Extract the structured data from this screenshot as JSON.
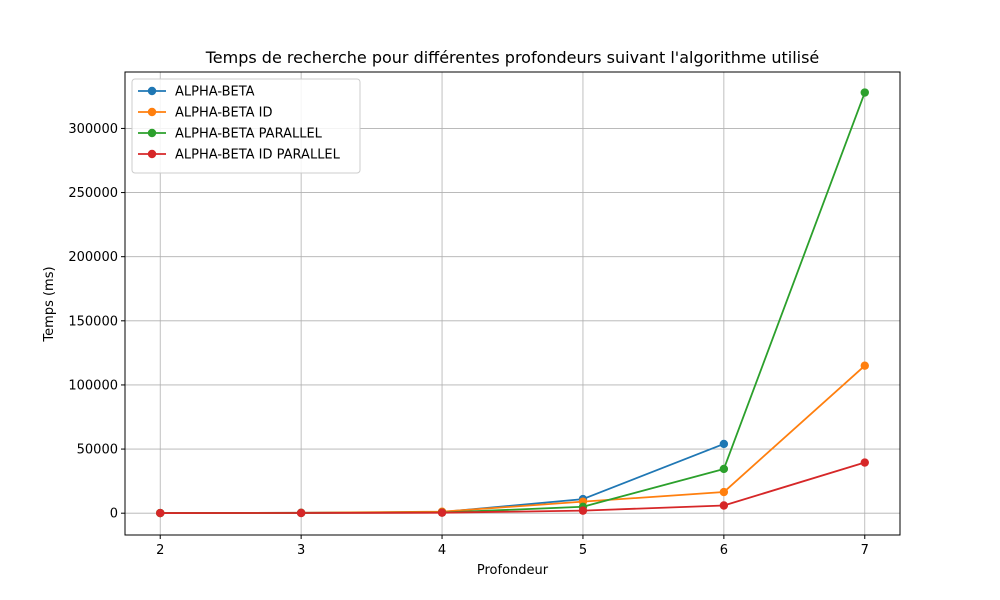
{
  "chart_data": {
    "type": "line",
    "title": "Temps de recherche pour différentes profondeurs suivant l'algorithme utilisé",
    "xlabel": "Profondeur",
    "ylabel": "Temps (ms)",
    "xlim": [
      1.75,
      7.25
    ],
    "ylim": [
      -17000,
      344000
    ],
    "xticks": [
      2,
      3,
      4,
      5,
      6,
      7
    ],
    "xtick_labels": [
      "2",
      "3",
      "4",
      "5",
      "6",
      "7"
    ],
    "yticks": [
      0,
      50000,
      100000,
      150000,
      200000,
      250000,
      300000
    ],
    "ytick_labels": [
      "0",
      "50000",
      "100000",
      "150000",
      "200000",
      "250000",
      "300000"
    ],
    "grid": true,
    "legend_position": "top-left",
    "series": [
      {
        "name": "ALPHA-BETA",
        "color": "#1f77b4",
        "x": [
          2,
          3,
          4,
          5,
          6
        ],
        "y": [
          100,
          300,
          900,
          11000,
          54000
        ]
      },
      {
        "name": "ALPHA-BETA ID",
        "color": "#ff7f0e",
        "x": [
          2,
          3,
          4,
          5,
          6,
          7
        ],
        "y": [
          100,
          300,
          1200,
          9000,
          16500,
          115000
        ]
      },
      {
        "name": "ALPHA-BETA PARALLEL",
        "color": "#2ca02c",
        "x": [
          2,
          3,
          4,
          5,
          6,
          7
        ],
        "y": [
          100,
          200,
          500,
          5000,
          34500,
          328000
        ]
      },
      {
        "name": "ALPHA-BETA ID PARALLEL",
        "color": "#d62728",
        "x": [
          2,
          3,
          4,
          5,
          6,
          7
        ],
        "y": [
          100,
          150,
          400,
          2000,
          6000,
          39500
        ]
      }
    ]
  }
}
